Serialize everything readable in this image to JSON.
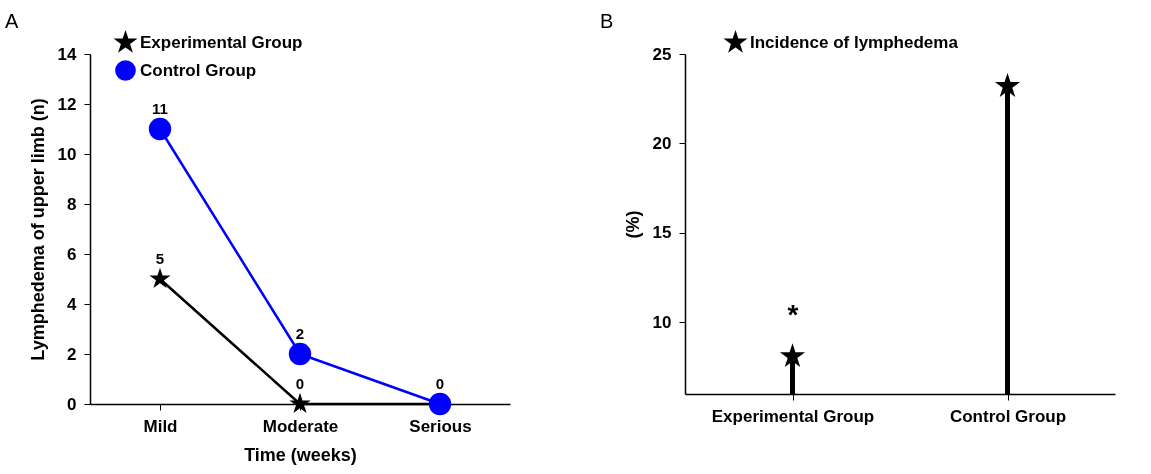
{
  "chart_data": [
    {
      "type": "line",
      "title": "A",
      "xlabel": "Time (weeks)",
      "ylabel": "Lymphedema of upper limb (n)",
      "categories": [
        "Mild",
        "Moderate",
        "Serious"
      ],
      "ylim": [
        0,
        14
      ],
      "yticks": [
        0,
        2,
        4,
        6,
        8,
        10,
        12,
        14
      ],
      "grid": false,
      "legend": "top left",
      "series": [
        {
          "name": "Experimental Group",
          "color": "#000000",
          "marker": "star",
          "values": [
            5,
            0,
            0
          ],
          "value_labels": [
            "5",
            "0",
            null
          ]
        },
        {
          "name": "Control Group",
          "color": "#0000ff",
          "marker": "circle",
          "values": [
            11,
            2,
            0
          ],
          "value_labels": [
            "11",
            "2",
            "0"
          ]
        }
      ]
    },
    {
      "type": "lollipop",
      "title": "B",
      "ylabel": "(%)",
      "categories": [
        "Experimental Group",
        "Control Group"
      ],
      "ylim": [
        6,
        25
      ],
      "yticks": [
        10,
        15,
        20,
        25
      ],
      "legend": "top",
      "marker": "star",
      "series": [
        {
          "name": "Incidence of lymphedema",
          "color": "#000000",
          "values": [
            8.1,
            23.2
          ]
        }
      ],
      "annotations": [
        "*"
      ]
    }
  ]
}
